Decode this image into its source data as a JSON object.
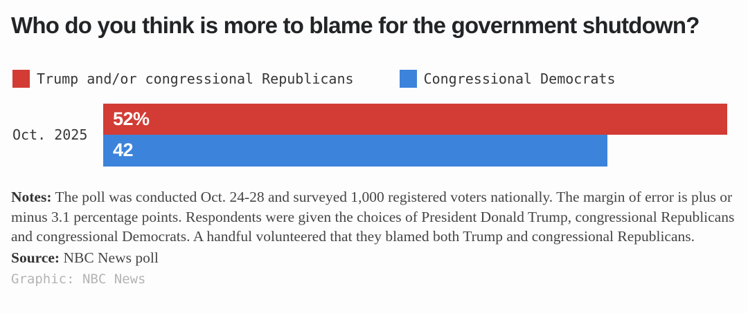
{
  "title": "Who do you think is more to blame for the government shutdown?",
  "legend": {
    "items": [
      {
        "label": "Trump and/or congressional Republicans",
        "color": "#d23c34"
      },
      {
        "label": "Congressional Democrats",
        "color": "#3c83db"
      }
    ]
  },
  "chart_data": {
    "type": "bar",
    "orientation": "horizontal",
    "title": "Who do you think is more to blame for the government shutdown?",
    "categories": [
      "Oct. 2025"
    ],
    "series": [
      {
        "name": "Trump and/or congressional Republicans",
        "values": [
          52
        ],
        "value_labels": [
          "52%"
        ],
        "color": "#d23c34"
      },
      {
        "name": "Congressional Democrats",
        "values": [
          42
        ],
        "value_labels": [
          "42"
        ],
        "color": "#3c83db"
      }
    ],
    "xlim": [
      0,
      52
    ],
    "grid": false,
    "legend_position": "top",
    "value_labels_inside_bars": true
  },
  "notes": {
    "label": "Notes:",
    "text": " The poll was conducted Oct. 24-28 and surveyed 1,000 registered voters nationally. The margin of error is plus or minus 3.1 percentage points. Respondents were given the choices of President Donald Trump, congressional Republicans and congressional Democrats. A handful volunteered that they blamed both Trump and congressional Republicans."
  },
  "source": {
    "label": "Source:",
    "text": " NBC News poll"
  },
  "credit": "Graphic: NBC News"
}
